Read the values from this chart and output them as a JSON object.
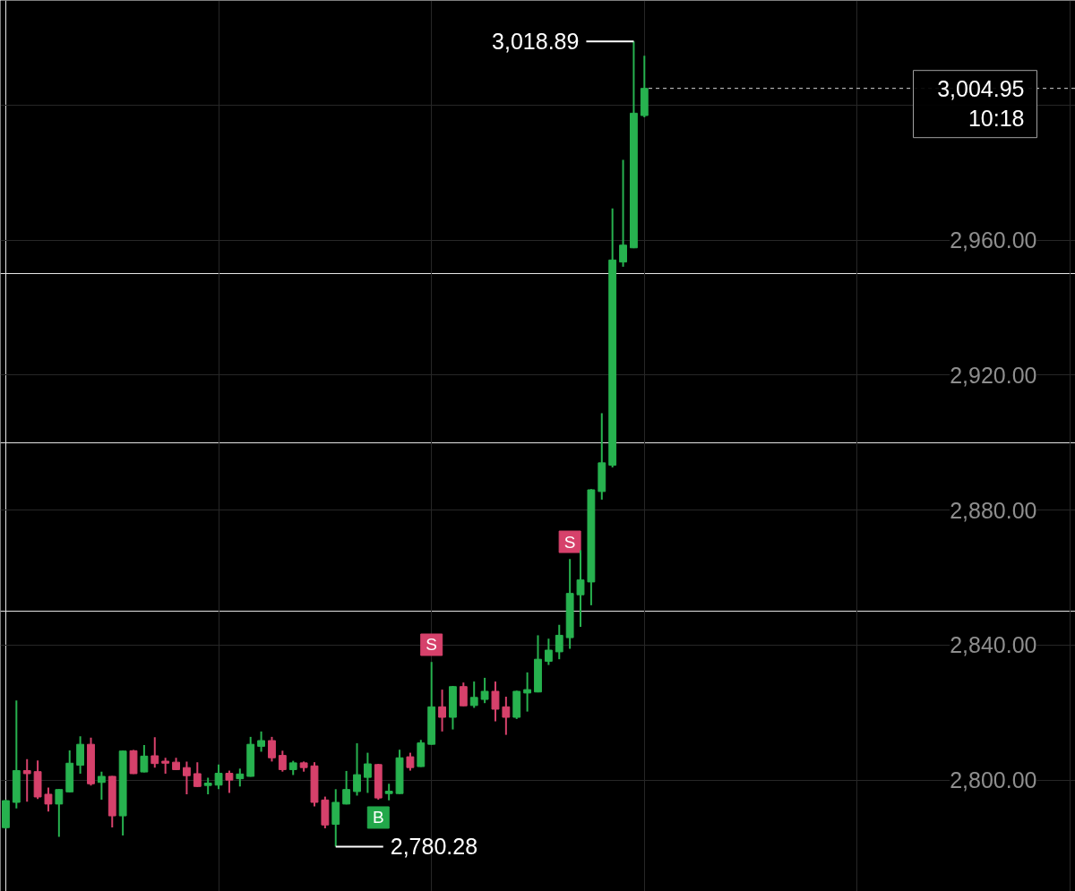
{
  "chart_data": {
    "type": "candlestick",
    "categories": [
      null,
      null,
      null,
      null,
      null,
      null,
      null,
      null,
      null,
      null,
      null,
      null,
      null,
      null,
      null,
      null,
      null,
      null,
      null,
      null,
      null,
      null,
      null,
      null,
      null,
      null,
      null,
      null,
      null,
      null,
      null,
      null,
      null,
      null,
      null,
      null,
      null,
      null,
      null,
      null,
      null,
      null,
      null,
      null,
      null,
      null,
      null,
      null,
      null,
      null,
      null,
      null,
      null,
      null,
      null,
      null,
      null,
      null,
      null,
      null,
      null,
      null,
      null,
      null,
      null,
      null,
      null,
      null,
      null,
      null,
      null,
      null,
      null,
      null,
      null,
      null,
      null,
      null,
      null,
      null,
      null,
      null,
      null,
      null,
      null,
      null,
      null,
      null,
      null,
      null,
      null,
      null,
      null,
      null,
      null,
      null,
      null,
      null,
      null,
      null,
      null
    ],
    "ohlc": [
      [
        2785.9,
        2794.2,
        2785.6,
        2793.9
      ],
      [
        2793.4,
        2823.6,
        2791.6,
        2802.8
      ],
      [
        2802.8,
        2806.2,
        2793.6,
        2801.9
      ],
      [
        2802.5,
        2805.8,
        2794.4,
        2795.0
      ],
      [
        2795.8,
        2797.8,
        2790.7,
        2792.9
      ],
      [
        2792.9,
        2797.3,
        2783.2,
        2797.2
      ],
      [
        2796.5,
        2808.8,
        2796.4,
        2805.0
      ],
      [
        2804.4,
        2813.0,
        2801.9,
        2810.6
      ],
      [
        2810.6,
        2812.6,
        2798.4,
        2798.9
      ],
      [
        2799.3,
        2802.5,
        2794.2,
        2801.1
      ],
      [
        2801.1,
        2801.2,
        2786.0,
        2789.4
      ],
      [
        2789.4,
        2808.7,
        2783.6,
        2808.6
      ],
      [
        2808.7,
        2808.9,
        2801.8,
        2801.9
      ],
      [
        2802.4,
        2810.4,
        2802.3,
        2807.1
      ],
      [
        2807.2,
        2812.7,
        2803.7,
        2804.9
      ],
      [
        2805.6,
        2806.6,
        2801.9,
        2805.0
      ],
      [
        2805.3,
        2806.6,
        2803.0,
        2803.1
      ],
      [
        2803.7,
        2805.5,
        2795.8,
        2801.3
      ],
      [
        2801.9,
        2805.3,
        2798.0,
        2798.1
      ],
      [
        2798.4,
        2800.7,
        2795.8,
        2799.1
      ],
      [
        2798.5,
        2804.6,
        2797.3,
        2802.0
      ],
      [
        2802.0,
        2802.8,
        2796.2,
        2800.0
      ],
      [
        2800.4,
        2803.4,
        2798.1,
        2801.8
      ],
      [
        2801.1,
        2812.8,
        2801.0,
        2810.6
      ],
      [
        2810.0,
        2814.4,
        2808.4,
        2811.7
      ],
      [
        2811.7,
        2812.8,
        2805.5,
        2806.6
      ],
      [
        2807.3,
        2808.7,
        2802.5,
        2803.1
      ],
      [
        2803.1,
        2805.7,
        2801.5,
        2805.1
      ],
      [
        2805.1,
        2805.5,
        2802.5,
        2803.7
      ],
      [
        2804.2,
        2805.3,
        2792.2,
        2793.4
      ],
      [
        2794.1,
        2795.1,
        2785.7,
        2786.7
      ],
      [
        2786.9,
        2797.3,
        2780.28,
        2793.4
      ],
      [
        2792.9,
        2802.7,
        2792.8,
        2797.2
      ],
      [
        2796.6,
        2810.9,
        2795.4,
        2801.6
      ],
      [
        2800.8,
        2808.1,
        2796.2,
        2804.8
      ],
      [
        2804.6,
        2804.8,
        2794.2,
        2794.7
      ],
      [
        2796.0,
        2798.9,
        2794.0,
        2796.7
      ],
      [
        2796.0,
        2809.0,
        2795.9,
        2806.6
      ],
      [
        2806.9,
        2808.1,
        2802.8,
        2803.7
      ],
      [
        2804.0,
        2811.9,
        2803.9,
        2811.0
      ],
      [
        2810.6,
        2835.0,
        2810.5,
        2821.7
      ],
      [
        2821.7,
        2826.8,
        2814.4,
        2818.6
      ],
      [
        2818.6,
        2827.9,
        2815.0,
        2827.7
      ],
      [
        2827.7,
        2828.9,
        2821.9,
        2822.0
      ],
      [
        2822.1,
        2829.2,
        2821.4,
        2824.5
      ],
      [
        2823.9,
        2830.3,
        2822.8,
        2826.3
      ],
      [
        2826.3,
        2829.2,
        2817.4,
        2821.0
      ],
      [
        2821.7,
        2824.7,
        2813.4,
        2818.6
      ],
      [
        2818.6,
        2826.5,
        2818.1,
        2826.3
      ],
      [
        2825.8,
        2831.9,
        2820.3,
        2826.8
      ],
      [
        2826.1,
        2842.9,
        2826.0,
        2835.8
      ],
      [
        2835.2,
        2841.9,
        2834.1,
        2838.5
      ],
      [
        2838.0,
        2846.0,
        2835.8,
        2842.9
      ],
      [
        2842.2,
        2865.5,
        2838.9,
        2855.3
      ],
      [
        2854.9,
        2868.1,
        2845.4,
        2859.3
      ],
      [
        2858.7,
        2886.2,
        2851.8,
        2886.0
      ],
      [
        2885.5,
        2908.7,
        2883.1,
        2894.0
      ],
      [
        2893.3,
        2969.4,
        2892.6,
        2954.1
      ],
      [
        2953.5,
        2983.8,
        2952.1,
        2958.5
      ],
      [
        2957.7,
        3018.89,
        2957.6,
        2997.6
      ],
      [
        2996.9,
        3014.6,
        2996.4,
        3004.95
      ],
      null,
      null,
      null,
      null,
      null,
      null,
      null,
      null,
      null,
      null,
      null,
      null,
      null,
      null,
      null,
      null,
      null,
      null,
      null,
      null,
      null,
      null,
      null,
      null,
      null,
      null,
      null,
      null,
      null,
      null,
      null,
      null,
      null,
      null,
      null,
      null,
      null,
      null,
      null,
      null
    ],
    "colors": [
      "#27b24f",
      "#27b24f",
      "#d6416b",
      "#d6416b",
      "#d6416b",
      "#27b24f",
      "#27b24f",
      "#27b24f",
      "#d6416b",
      "#27b24f",
      "#d6416b",
      "#27b24f",
      "#d6416b",
      "#27b24f",
      "#d6416b",
      "#d6416b",
      "#d6416b",
      "#d6416b",
      "#d6416b",
      "#27b24f",
      "#27b24f",
      "#d6416b",
      "#27b24f",
      "#27b24f",
      "#27b24f",
      "#d6416b",
      "#d6416b",
      "#27b24f",
      "#d6416b",
      "#d6416b",
      "#d6416b",
      "#27b24f",
      "#27b24f",
      "#27b24f",
      "#27b24f",
      "#d6416b",
      "#27b24f",
      "#27b24f",
      "#d6416b",
      "#27b24f",
      "#27b24f",
      "#d6416b",
      "#27b24f",
      "#d6416b",
      "#27b24f",
      "#27b24f",
      "#d6416b",
      "#d6416b",
      "#27b24f",
      "#27b24f",
      "#27b24f",
      "#27b24f",
      "#27b24f",
      "#27b24f",
      "#27b24f",
      "#27b24f",
      "#27b24f",
      "#27b24f",
      "#27b24f",
      "#27b24f",
      "#27b24f",
      null,
      null,
      null,
      null,
      null,
      null,
      null,
      null,
      null,
      null,
      null,
      null,
      null,
      null,
      null,
      null,
      null,
      null,
      null,
      null,
      null,
      null,
      null,
      null,
      null,
      null,
      null,
      null,
      null,
      null,
      null,
      null,
      null,
      null,
      null,
      null,
      null,
      null,
      null,
      null
    ],
    "series": [
      {
        "type": "scatter",
        "name": "S",
        "color": "#d6416b",
        "marker": "square",
        "values": [
          null,
          null,
          null,
          null,
          null,
          null,
          null,
          null,
          null,
          null,
          null,
          null,
          null,
          null,
          null,
          null,
          null,
          null,
          null,
          null,
          null,
          null,
          null,
          null,
          null,
          null,
          null,
          null,
          null,
          null,
          null,
          null,
          null,
          null,
          null,
          null,
          null,
          null,
          null,
          null,
          2840.1,
          null,
          null,
          null,
          null,
          null,
          null,
          null,
          null,
          null,
          null,
          null,
          null,
          2870.6,
          null,
          null,
          null,
          null,
          null,
          null,
          null,
          null,
          null,
          null,
          null,
          null,
          null,
          null,
          null,
          null,
          null,
          null,
          null,
          null,
          null,
          null,
          null,
          null,
          null,
          null,
          null,
          null,
          null,
          null,
          null,
          null,
          null,
          null,
          null,
          null,
          null,
          null,
          null,
          null,
          null,
          null,
          null,
          null,
          null,
          null,
          null
        ]
      },
      {
        "type": "scatter",
        "name": "B",
        "color": "#22a84a",
        "marker": "square",
        "values": [
          null,
          null,
          null,
          null,
          null,
          null,
          null,
          null,
          null,
          null,
          null,
          null,
          null,
          null,
          null,
          null,
          null,
          null,
          null,
          null,
          null,
          null,
          null,
          null,
          null,
          null,
          null,
          null,
          null,
          null,
          null,
          null,
          null,
          null,
          null,
          2788.9,
          null,
          null,
          null,
          null,
          null,
          null,
          null,
          null,
          null,
          null,
          null,
          null,
          null,
          null,
          null,
          null,
          null,
          null,
          null,
          null,
          null,
          null,
          null,
          null,
          null,
          null,
          null,
          null,
          null,
          null,
          null,
          null,
          null,
          null,
          null,
          null,
          null,
          null,
          null,
          null,
          null,
          null,
          null,
          null,
          null,
          null,
          null,
          null,
          null,
          null,
          null,
          null,
          null,
          null,
          null,
          null,
          null,
          null,
          null,
          null,
          null,
          null,
          null,
          null,
          null
        ]
      }
    ],
    "ylim": [
      2767,
      3031
    ],
    "yticks": [
      {
        "value": 2800,
        "label": "2,800.00"
      },
      {
        "value": 2840,
        "label": "2,840.00"
      },
      {
        "value": 2880,
        "label": "2,880.00"
      },
      {
        "value": 2920,
        "label": "2,920.00"
      },
      {
        "value": 2960,
        "label": "2,960.00"
      },
      {
        "value": 3000,
        "label": null
      }
    ],
    "tick_labels": "y",
    "grid": true,
    "ref_lines": [
      {
        "axis": "y",
        "value": 3004.95,
        "label": "3,004.95",
        "color": "#d9d9d9",
        "line_style": "dashed"
      }
    ],
    "annotations": [
      "3,018.89",
      "2,780.28",
      "10:18"
    ]
  }
}
